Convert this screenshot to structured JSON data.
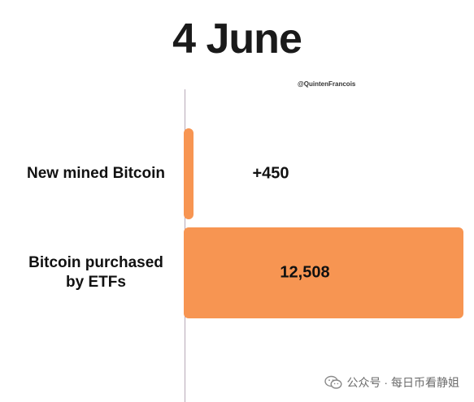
{
  "chart_data": {
    "type": "bar",
    "orientation": "horizontal",
    "title": "4 June",
    "categories": [
      "New mined Bitcoin",
      "Bitcoin purchased by ETFs"
    ],
    "category_lines": [
      [
        "New mined Bitcoin"
      ],
      [
        "Bitcoin purchased",
        "by ETFs"
      ]
    ],
    "values": [
      450,
      12508
    ],
    "value_labels": [
      "+450",
      "12,508"
    ],
    "bar_color": "#f79552",
    "grid": false
  },
  "attribution": "@QuintenFrancois",
  "footer": {
    "icon": "wechat-icon",
    "text": "公众号 · 每日币看静姐"
  }
}
